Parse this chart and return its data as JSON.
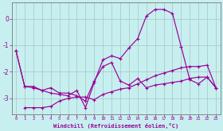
{
  "xlabel": "Windchill (Refroidissement éolien,°C)",
  "background_color": "#c8efef",
  "grid_color": "#b0dada",
  "line_color": "#990099",
  "spine_color": "#888888",
  "xlim": [
    -0.5,
    23.5
  ],
  "ylim": [
    -3.6,
    0.6
  ],
  "yticks": [
    0,
    -1,
    -2,
    -3
  ],
  "xticks": [
    0,
    1,
    2,
    3,
    4,
    5,
    6,
    7,
    8,
    9,
    10,
    11,
    12,
    13,
    14,
    15,
    16,
    17,
    18,
    19,
    20,
    21,
    22,
    23
  ],
  "line1_x": [
    0,
    1,
    2,
    3,
    4,
    5,
    6,
    7,
    8,
    9,
    10,
    11,
    12,
    13,
    14,
    15,
    16,
    17,
    18,
    19,
    20,
    21,
    22,
    23
  ],
  "line1_y": [
    -1.2,
    -2.55,
    -2.55,
    -2.7,
    -2.6,
    -2.8,
    -2.8,
    -2.9,
    -3.1,
    -2.35,
    -1.8,
    -1.65,
    -2.35,
    -2.5,
    -2.25,
    -2.6,
    -2.5,
    -2.45,
    -2.4,
    -2.35,
    -2.25,
    -2.2,
    -2.2,
    -2.6
  ],
  "line2_x": [
    0,
    1,
    2,
    3,
    4,
    5,
    6,
    7,
    8,
    9,
    10,
    11,
    12,
    13,
    14,
    15,
    16,
    17,
    18,
    19,
    20,
    21,
    22,
    23
  ],
  "line2_y": [
    -1.2,
    -2.55,
    -2.6,
    -2.7,
    -2.8,
    -2.85,
    -2.9,
    -2.7,
    -3.35,
    -2.4,
    -1.55,
    -1.4,
    -1.5,
    -1.1,
    -0.75,
    0.1,
    0.35,
    0.35,
    0.2,
    -1.05,
    -2.3,
    -2.45,
    -2.2,
    -2.6
  ],
  "line3_x": [
    1,
    2,
    3,
    4,
    5,
    6,
    7,
    8,
    9,
    10,
    11,
    12,
    13,
    14,
    15,
    16,
    17,
    18,
    19,
    20,
    21,
    22,
    23
  ],
  "line3_y": [
    -3.35,
    -3.35,
    -3.35,
    -3.3,
    -3.1,
    -3.0,
    -2.95,
    -2.95,
    -3.05,
    -2.85,
    -2.75,
    -2.65,
    -2.6,
    -2.45,
    -2.3,
    -2.15,
    -2.05,
    -1.95,
    -1.85,
    -1.8,
    -1.8,
    -1.75,
    -2.6
  ]
}
